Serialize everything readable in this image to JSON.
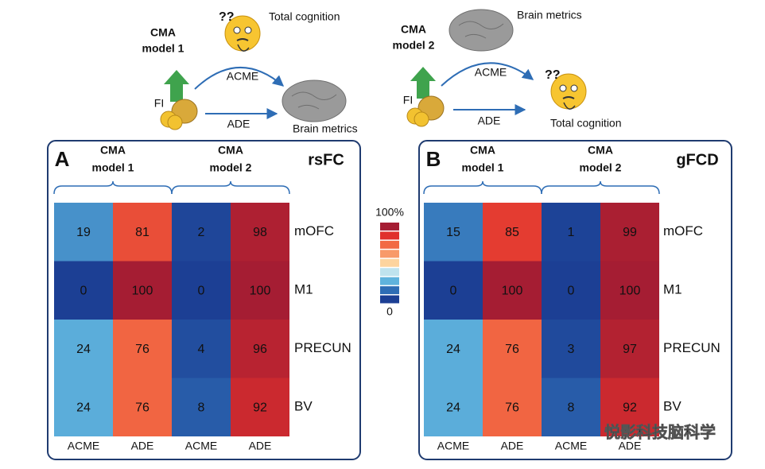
{
  "chart_data": [
    {
      "type": "heatmap",
      "panel": "A",
      "title": "rsFC",
      "group_labels": [
        [
          "CMA",
          "model 1"
        ],
        [
          "CMA",
          "model 2"
        ]
      ],
      "columns": [
        "ACME",
        "ADE",
        "ACME",
        "ADE"
      ],
      "rows": [
        "mOFC",
        "M1",
        "PRECUN",
        "BV"
      ],
      "values": [
        [
          19,
          81,
          2,
          98
        ],
        [
          0,
          100,
          0,
          100
        ],
        [
          24,
          76,
          4,
          96
        ],
        [
          24,
          76,
          8,
          92
        ]
      ]
    },
    {
      "type": "heatmap",
      "panel": "B",
      "title": "gFCD",
      "group_labels": [
        [
          "CMA",
          "model 1"
        ],
        [
          "CMA",
          "model 2"
        ]
      ],
      "columns": [
        "ACME",
        "ADE",
        "ACME",
        "ADE"
      ],
      "rows": [
        "mOFC",
        "M1",
        "PRECUN",
        "BV"
      ],
      "values": [
        [
          15,
          85,
          1,
          99
        ],
        [
          0,
          100,
          0,
          100
        ],
        [
          24,
          76,
          3,
          97
        ],
        [
          24,
          76,
          8,
          92
        ]
      ]
    }
  ],
  "colorbar": {
    "range": [
      0,
      100
    ],
    "ticks": [
      {
        "value": 100,
        "label": "100%"
      },
      0
    ],
    "colors": [
      "#1c3f94",
      "#2e6db5",
      "#5fb3dd",
      "#bfe3ee",
      "#fdd49e",
      "#f89a6a",
      "#f26a44",
      "#e0302c",
      "#a51d33"
    ]
  },
  "diagrams": [
    {
      "model": [
        "CMA",
        "model 1"
      ],
      "top": "Total cognition",
      "path_top": "ACME",
      "predictor": "FI",
      "path_bottom": "ADE",
      "outcome": "Brain metrics"
    },
    {
      "model": [
        "CMA",
        "model 2"
      ],
      "top": "Brain metrics",
      "path_top": "ACME",
      "predictor": "FI",
      "path_bottom": "ADE",
      "outcome": "Total cognition"
    }
  ],
  "watermark": "悦影科技脑科学"
}
